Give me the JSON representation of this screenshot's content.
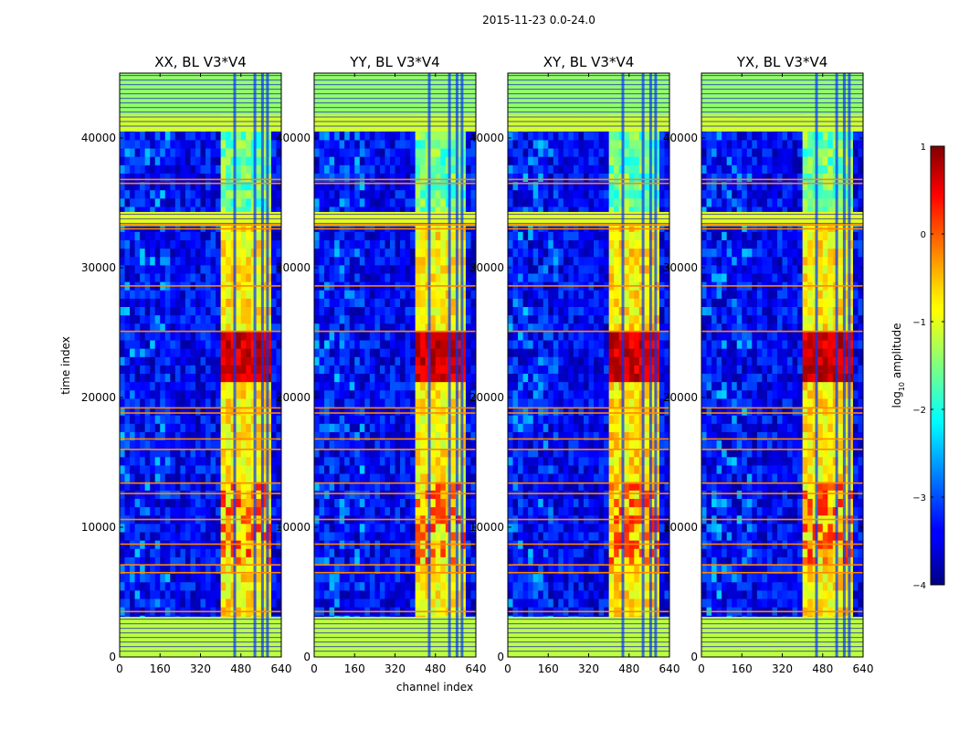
{
  "chart_data": {
    "type": "heatmap",
    "suptitle": "2015-11-23 0.0-24.0",
    "xlabel": "channel index",
    "ylabel": "time index",
    "xlim": [
      0,
      640
    ],
    "ylim": [
      0,
      45000
    ],
    "xticks": [
      0,
      160,
      320,
      480,
      640
    ],
    "yticks": [
      0,
      10000,
      20000,
      30000,
      40000
    ],
    "panels": [
      {
        "title": "XX, BL V3*V4",
        "band_strength": 1.0
      },
      {
        "title": "YY, BL V3*V4",
        "band_strength": 1.05
      },
      {
        "title": "XY, BL V3*V4",
        "band_strength": 0.95
      },
      {
        "title": "YX, BL V3*V4",
        "band_strength": 1.0
      }
    ],
    "colorbar": {
      "label_main": "log",
      "label_sub": "10",
      "label_rest": " amplitude",
      "range": [
        -4,
        1
      ],
      "ticks": [
        1,
        0,
        -1,
        -2,
        -3,
        -4
      ],
      "tick_labels": [
        "1",
        "0",
        "−1",
        "−2",
        "−3",
        "−4"
      ]
    },
    "background_level": -3.4,
    "active_channels": [
      400,
      600
    ],
    "bright_time_range": [
      21500,
      24800
    ],
    "flagged_blocks": [
      {
        "t0": 0,
        "t1": 3100,
        "level": -1.2
      },
      {
        "t0": 33200,
        "t1": 34300,
        "level": -1.0
      },
      {
        "t0": 40500,
        "t1": 41800,
        "level": -1.1
      },
      {
        "t0": 41800,
        "t1": 45000,
        "level": -1.4
      }
    ],
    "orange_lines": [
      3500,
      6500,
      7100,
      8700,
      10600,
      12600,
      13400,
      16000,
      16800,
      18800,
      19200,
      25100,
      28600,
      33000,
      33300,
      36500,
      36800
    ],
    "channel_gaps": [
      450,
      530,
      560,
      580
    ]
  }
}
